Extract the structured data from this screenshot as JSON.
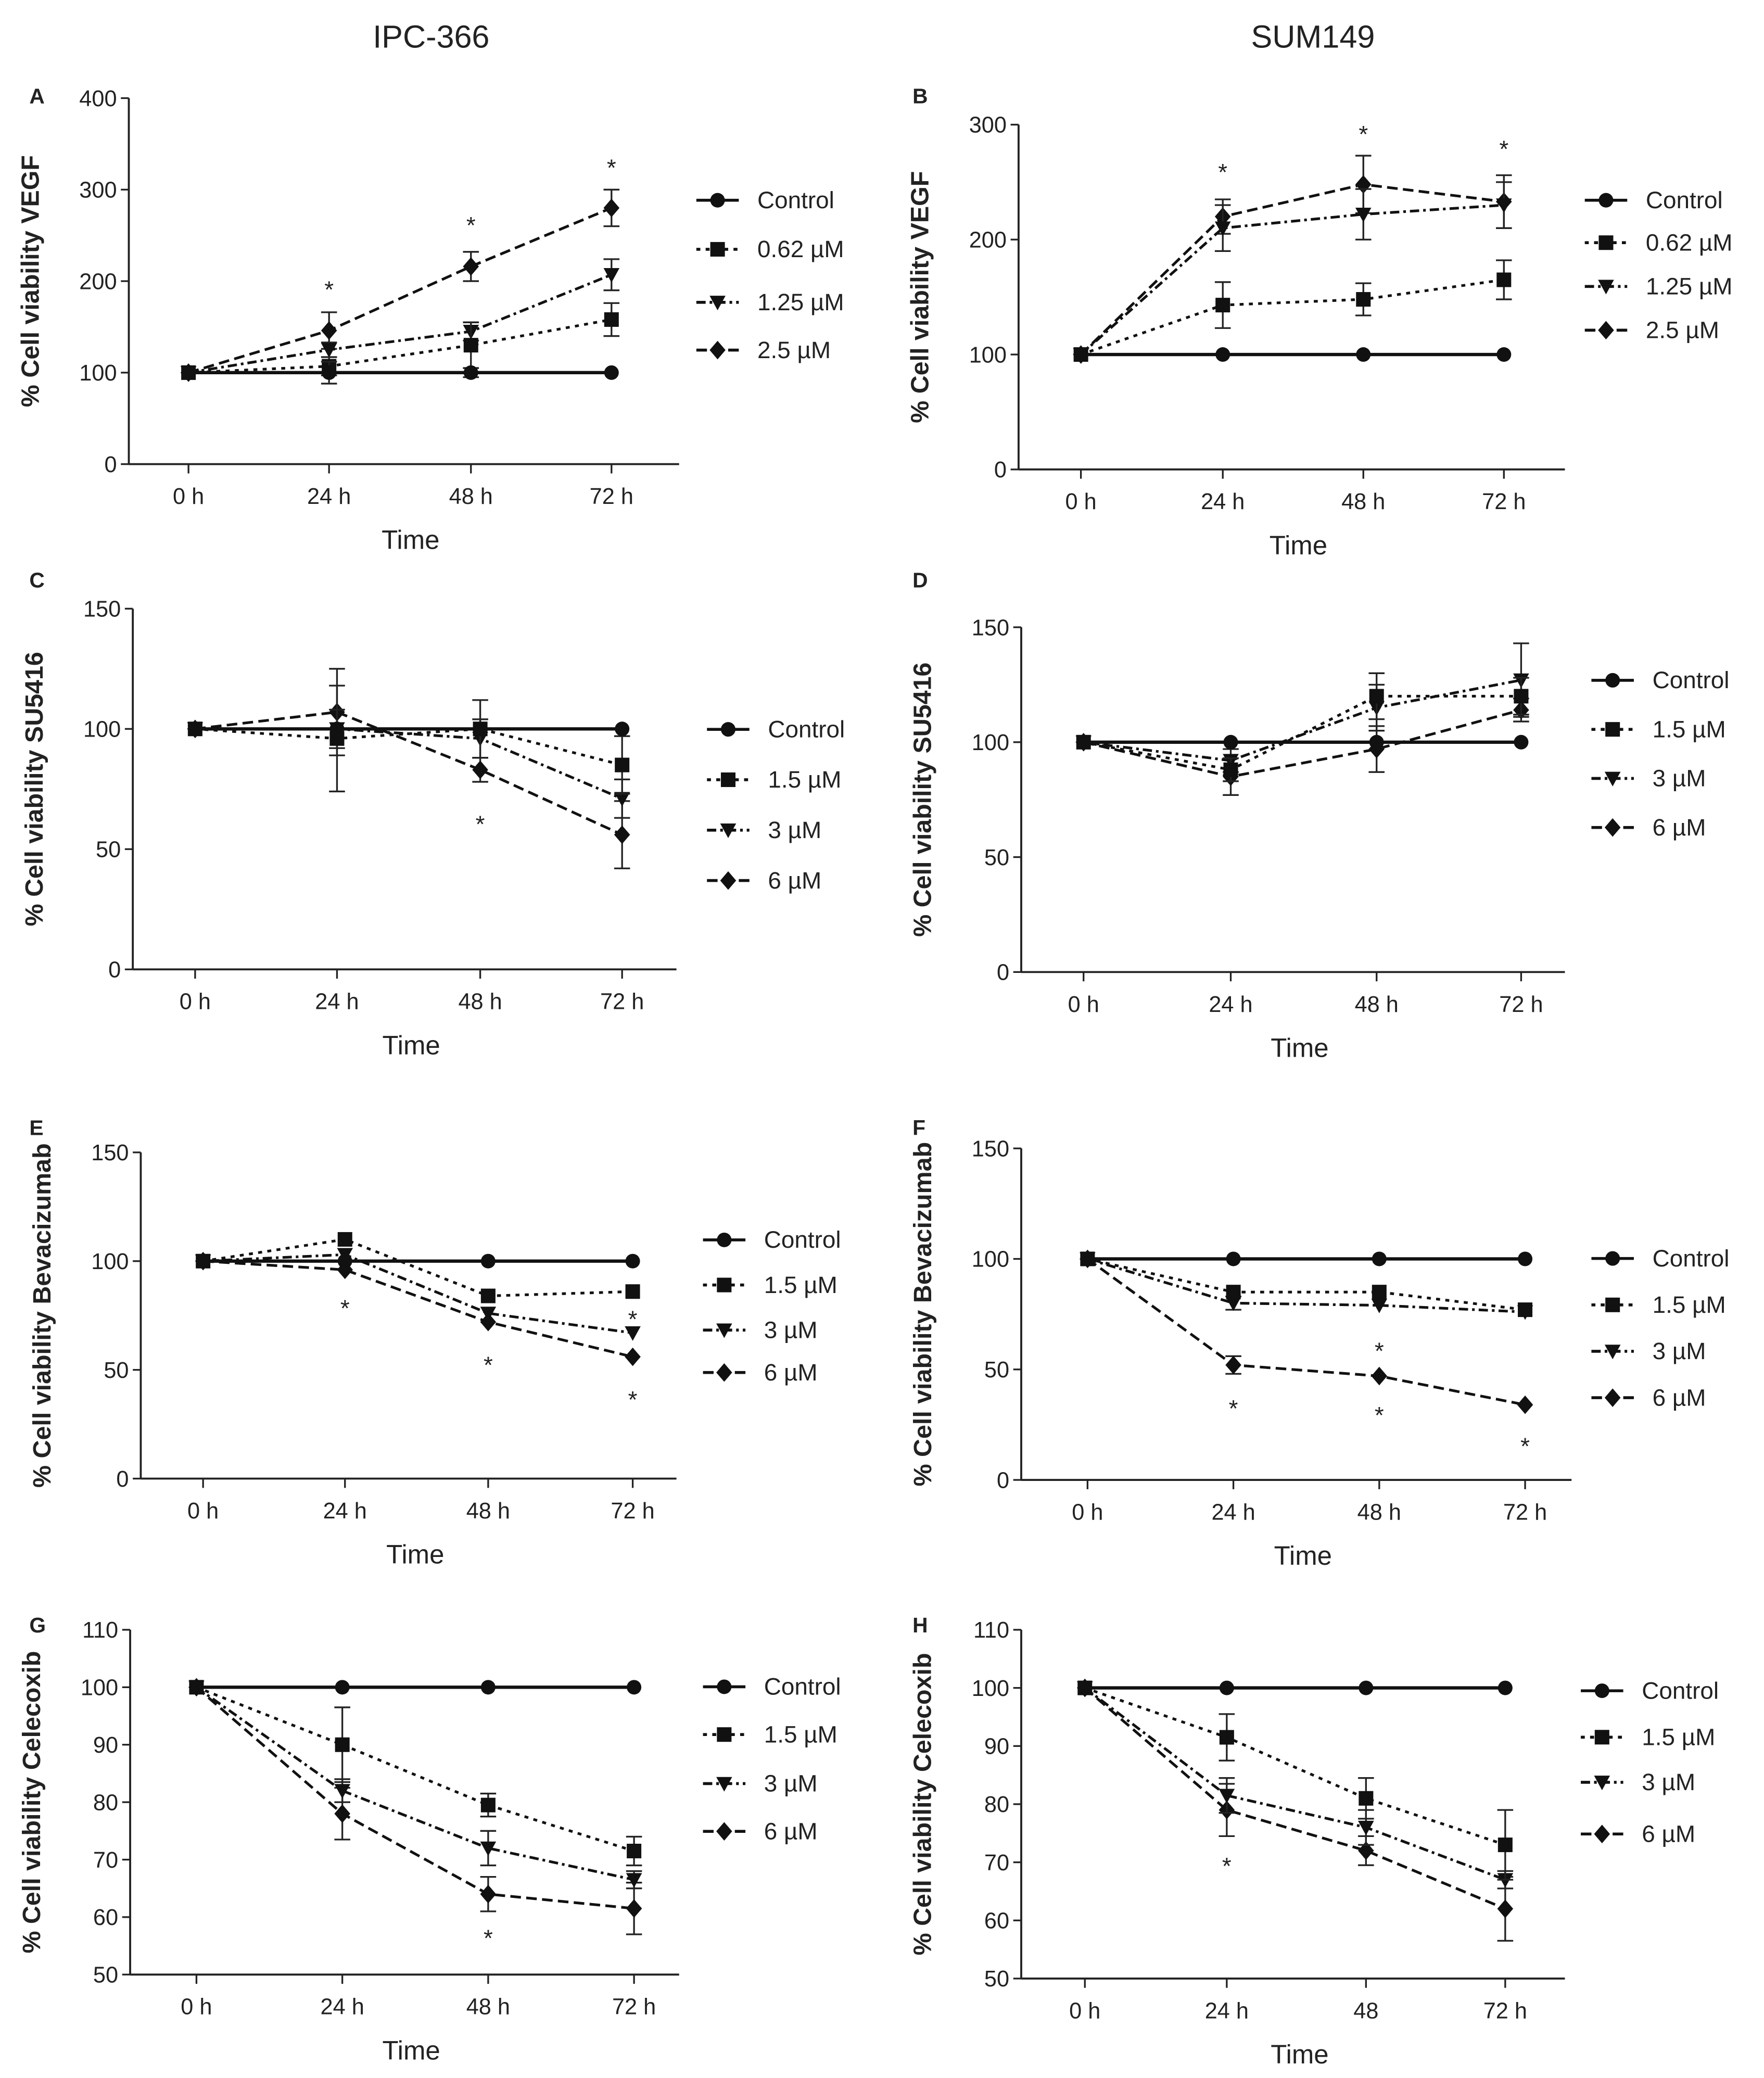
{
  "column_titles": [
    "IPC-366",
    "SUM149"
  ],
  "chart_data": [
    {
      "panel": "A",
      "type": "line",
      "title": "",
      "xlabel": "Time",
      "ylabel": "% Cell viability VEGF",
      "x": [
        "0 h",
        "24 h",
        "48 h",
        "72 h"
      ],
      "ylim": [
        0,
        400
      ],
      "yticks": [
        0,
        100,
        200,
        300,
        400
      ],
      "legend_position": "right",
      "series": [
        {
          "name": "Control",
          "values": [
            100,
            100,
            100,
            100
          ],
          "errors": [
            0,
            12,
            5,
            0
          ]
        },
        {
          "name": "0.62 µM",
          "values": [
            100,
            107,
            130,
            158
          ],
          "errors": [
            0,
            10,
            25,
            18
          ]
        },
        {
          "name": "1.25 µM",
          "values": [
            100,
            125,
            145,
            207
          ],
          "errors": [
            0,
            8,
            10,
            17
          ]
        },
        {
          "name": "2.5 µM",
          "values": [
            100,
            146,
            216,
            280
          ],
          "errors": [
            0,
            20,
            16,
            20
          ]
        }
      ],
      "annotations": [
        {
          "text": "*",
          "x": "24 h",
          "y": 195
        },
        {
          "text": "*",
          "x": "48 h",
          "y": 265
        },
        {
          "text": "*",
          "x": "72 h",
          "y": 328
        }
      ]
    },
    {
      "panel": "B",
      "type": "line",
      "title": "",
      "xlabel": "Time",
      "ylabel": "% Cell viability VEGF",
      "x": [
        "0 h",
        "24 h",
        "48 h",
        "72 h"
      ],
      "ylim": [
        0,
        300
      ],
      "yticks": [
        0,
        100,
        200,
        300
      ],
      "legend_position": "right",
      "series": [
        {
          "name": "Control",
          "values": [
            100,
            100,
            100,
            100
          ],
          "errors": [
            0,
            0,
            0,
            0
          ]
        },
        {
          "name": "0.62 µM",
          "values": [
            100,
            143,
            148,
            165
          ],
          "errors": [
            0,
            20,
            14,
            17
          ]
        },
        {
          "name": "1.25 µM",
          "values": [
            100,
            210,
            222,
            230
          ],
          "errors": [
            0,
            20,
            22,
            20
          ]
        },
        {
          "name": "2.5 µM",
          "values": [
            100,
            220,
            248,
            233
          ],
          "errors": [
            0,
            15,
            25,
            23
          ]
        }
      ],
      "annotations": [
        {
          "text": "*",
          "x": "24 h",
          "y": 262
        },
        {
          "text": "*",
          "x": "48 h",
          "y": 295
        },
        {
          "text": "*",
          "x": "72 h",
          "y": 282
        }
      ]
    },
    {
      "panel": "C",
      "type": "line",
      "title": "",
      "xlabel": "Time",
      "ylabel": "% Cell viability SU5416",
      "x": [
        "0 h",
        "24 h",
        "48 h",
        "72 h"
      ],
      "ylim": [
        0,
        150
      ],
      "yticks": [
        0,
        50,
        100,
        150
      ],
      "legend_position": "right",
      "series": [
        {
          "name": "Control",
          "values": [
            100,
            100,
            100,
            100
          ],
          "errors": [
            0,
            0,
            0,
            0
          ]
        },
        {
          "name": "1.5 µM",
          "values": [
            100,
            96,
            100,
            85
          ],
          "errors": [
            0,
            22,
            12,
            12
          ]
        },
        {
          "name": "3 µM",
          "values": [
            100,
            100,
            96,
            71
          ],
          "errors": [
            0,
            8,
            8,
            8
          ]
        },
        {
          "name": "6 µM",
          "values": [
            100,
            107,
            83,
            56
          ],
          "errors": [
            0,
            18,
            5,
            14
          ]
        }
      ],
      "annotations": [
        {
          "text": "*",
          "x": "48 h",
          "y": 62
        }
      ]
    },
    {
      "panel": "D",
      "type": "line",
      "title": "",
      "xlabel": "Time",
      "ylabel": "% Cell viability  SU5416",
      "x": [
        "0 h",
        "24 h",
        "48 h",
        "72 h"
      ],
      "ylim": [
        0,
        150
      ],
      "yticks": [
        0,
        50,
        100,
        150
      ],
      "legend_position": "right",
      "series": [
        {
          "name": "Control",
          "values": [
            100,
            100,
            100,
            100
          ],
          "errors": [
            0,
            0,
            0,
            0
          ]
        },
        {
          "name": "1.5 µM",
          "values": [
            100,
            88,
            120,
            120
          ],
          "errors": [
            0,
            5,
            10,
            8
          ]
        },
        {
          "name": "3 µM",
          "values": [
            100,
            92,
            115,
            127
          ],
          "errors": [
            0,
            5,
            10,
            16
          ]
        },
        {
          "name": "6 µM",
          "values": [
            100,
            85,
            97,
            114
          ],
          "errors": [
            0,
            8,
            10,
            5
          ]
        }
      ],
      "annotations": []
    },
    {
      "panel": "E",
      "type": "line",
      "title": "",
      "xlabel": "Time",
      "ylabel": "% Cell viability Bevacizumab",
      "x": [
        "0 h",
        "24 h",
        "48 h",
        "72 h"
      ],
      "ylim": [
        0,
        150
      ],
      "yticks": [
        0,
        50,
        100,
        150
      ],
      "legend_position": "right",
      "series": [
        {
          "name": "Control",
          "values": [
            100,
            100,
            100,
            100
          ],
          "errors": [
            0,
            0,
            0,
            0
          ]
        },
        {
          "name": "1.5 µM",
          "values": [
            100,
            110,
            84,
            86
          ],
          "errors": [
            0,
            0,
            0,
            0
          ]
        },
        {
          "name": "3 µM",
          "values": [
            100,
            103,
            76,
            67
          ],
          "errors": [
            0,
            0,
            0,
            0
          ]
        },
        {
          "name": "6 µM",
          "values": [
            100,
            96,
            72,
            56
          ],
          "errors": [
            0,
            0,
            0,
            0
          ]
        }
      ],
      "annotations": [
        {
          "text": "*",
          "x": "24 h",
          "y": 80
        },
        {
          "text": "*",
          "x": "48 h",
          "y": 54
        },
        {
          "text": "*",
          "x": "72 h",
          "y": 75
        },
        {
          "text": "*",
          "x": "72 h",
          "y": 38
        }
      ]
    },
    {
      "panel": "F",
      "type": "line",
      "title": "",
      "xlabel": "Time",
      "ylabel": "% Cell viability Bevacizumab",
      "x": [
        "0 h",
        "24 h",
        "48 h",
        "72 h"
      ],
      "ylim": [
        0,
        150
      ],
      "yticks": [
        0,
        50,
        100,
        150
      ],
      "legend_position": "right",
      "series": [
        {
          "name": "Control",
          "values": [
            100,
            100,
            100,
            100
          ],
          "errors": [
            0,
            0,
            0,
            0
          ]
        },
        {
          "name": "1.5 µM",
          "values": [
            100,
            85,
            85,
            77
          ],
          "errors": [
            0,
            0,
            0,
            0
          ]
        },
        {
          "name": "3 µM",
          "values": [
            100,
            80,
            79,
            76
          ],
          "errors": [
            0,
            3,
            0,
            0
          ]
        },
        {
          "name": "6 µM",
          "values": [
            100,
            52,
            47,
            34
          ],
          "errors": [
            0,
            4,
            0,
            0
          ]
        }
      ],
      "annotations": [
        {
          "text": "*",
          "x": "24 h",
          "y": 34
        },
        {
          "text": "*",
          "x": "48 h",
          "y": 60
        },
        {
          "text": "*",
          "x": "48 h",
          "y": 31
        },
        {
          "text": "*",
          "x": "72 h",
          "y": 17
        }
      ]
    },
    {
      "panel": "G",
      "type": "line",
      "title": "",
      "xlabel": "Time",
      "ylabel": "% Cell viability  Celecoxib",
      "x": [
        "0 h",
        "24 h",
        "48 h",
        "72 h"
      ],
      "ylim": [
        50,
        110
      ],
      "yticks": [
        50,
        60,
        70,
        80,
        90,
        100,
        110
      ],
      "legend_position": "right",
      "series": [
        {
          "name": "Control",
          "values": [
            100,
            100,
            100,
            100
          ],
          "errors": [
            0,
            0,
            0,
            0
          ]
        },
        {
          "name": "1.5 µM",
          "values": [
            100,
            90,
            79.5,
            71.5
          ],
          "errors": [
            0,
            6.5,
            2,
            2.5
          ]
        },
        {
          "name": "3 µM",
          "values": [
            100,
            82,
            72,
            66.5
          ],
          "errors": [
            0,
            2,
            3,
            1.5
          ]
        },
        {
          "name": "6 µM",
          "values": [
            100,
            78,
            64,
            61.5
          ],
          "errors": [
            0,
            4.5,
            3,
            4.5
          ]
        }
      ],
      "annotations": [
        {
          "text": "*",
          "x": "48 h",
          "y": 57
        }
      ]
    },
    {
      "panel": "H",
      "type": "line",
      "title": "",
      "xlabel": "Time",
      "ylabel": "% Cell viability  Celecoxib",
      "x": [
        "0 h",
        "24 h",
        "48",
        "72 h"
      ],
      "ylim": [
        50,
        110
      ],
      "yticks": [
        50,
        60,
        70,
        80,
        90,
        100,
        110
      ],
      "legend_position": "right",
      "series": [
        {
          "name": "Control",
          "values": [
            100,
            100,
            100,
            100
          ],
          "errors": [
            0,
            0,
            0,
            0
          ]
        },
        {
          "name": "1.5 µM",
          "values": [
            100,
            91.5,
            81,
            73
          ],
          "errors": [
            0,
            4,
            3.5,
            6
          ]
        },
        {
          "name": "3  µM",
          "values": [
            100,
            81.5,
            76,
            67
          ],
          "errors": [
            0,
            3,
            3,
            1.5
          ]
        },
        {
          "name": "6 µM",
          "values": [
            100,
            79,
            72,
            62
          ],
          "errors": [
            0,
            4.5,
            2.5,
            5.5
          ]
        }
      ],
      "annotations": [
        {
          "text": "*",
          "x": "24 h",
          "y": 70
        }
      ]
    }
  ]
}
